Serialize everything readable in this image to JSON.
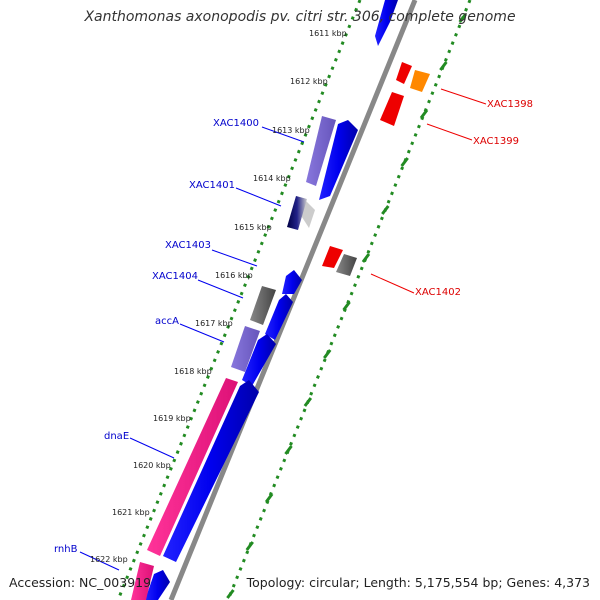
{
  "title": "Xanthomonas axonopodis pv. citri str. 306, complete genome",
  "accession": "Accession: NC_003919",
  "topology": "Topology: circular; Length: 5,175,554 bp; Genes: 4,373",
  "kbp_ticks": [
    "1611 kbp",
    "1612 kbp",
    "1613 kbp",
    "1614 kbp",
    "1615 kbp",
    "1616 kbp",
    "1617 kbp",
    "1618 kbp",
    "1619 kbp",
    "1620 kbp",
    "1621 kbp",
    "1622 kbp"
  ],
  "genes_left": [
    {
      "label": "XAC1400",
      "color": "#0000cc"
    },
    {
      "label": "XAC1401",
      "color": "#0000cc"
    },
    {
      "label": "XAC1403",
      "color": "#0000cc"
    },
    {
      "label": "XAC1404",
      "color": "#0000cc"
    },
    {
      "label": "accA",
      "color": "#0000cc"
    },
    {
      "label": "dnaE",
      "color": "#0000cc"
    },
    {
      "label": "rnhB",
      "color": "#0000cc"
    }
  ],
  "genes_right": [
    {
      "label": "XAC1398",
      "color": "#dd0000"
    },
    {
      "label": "XAC1399",
      "color": "#dd0000"
    },
    {
      "label": "XAC1402",
      "color": "#dd0000"
    }
  ],
  "colors": {
    "backbone": "#888888",
    "tick_green": "#228b22",
    "forward_gene": "#0000ee",
    "reverse_gene": "#ee0000",
    "orange_gene": "#ff8800",
    "gray_feature": "#666666",
    "purple_feature": "#7766cc",
    "pink_feature": "#ee2288"
  }
}
